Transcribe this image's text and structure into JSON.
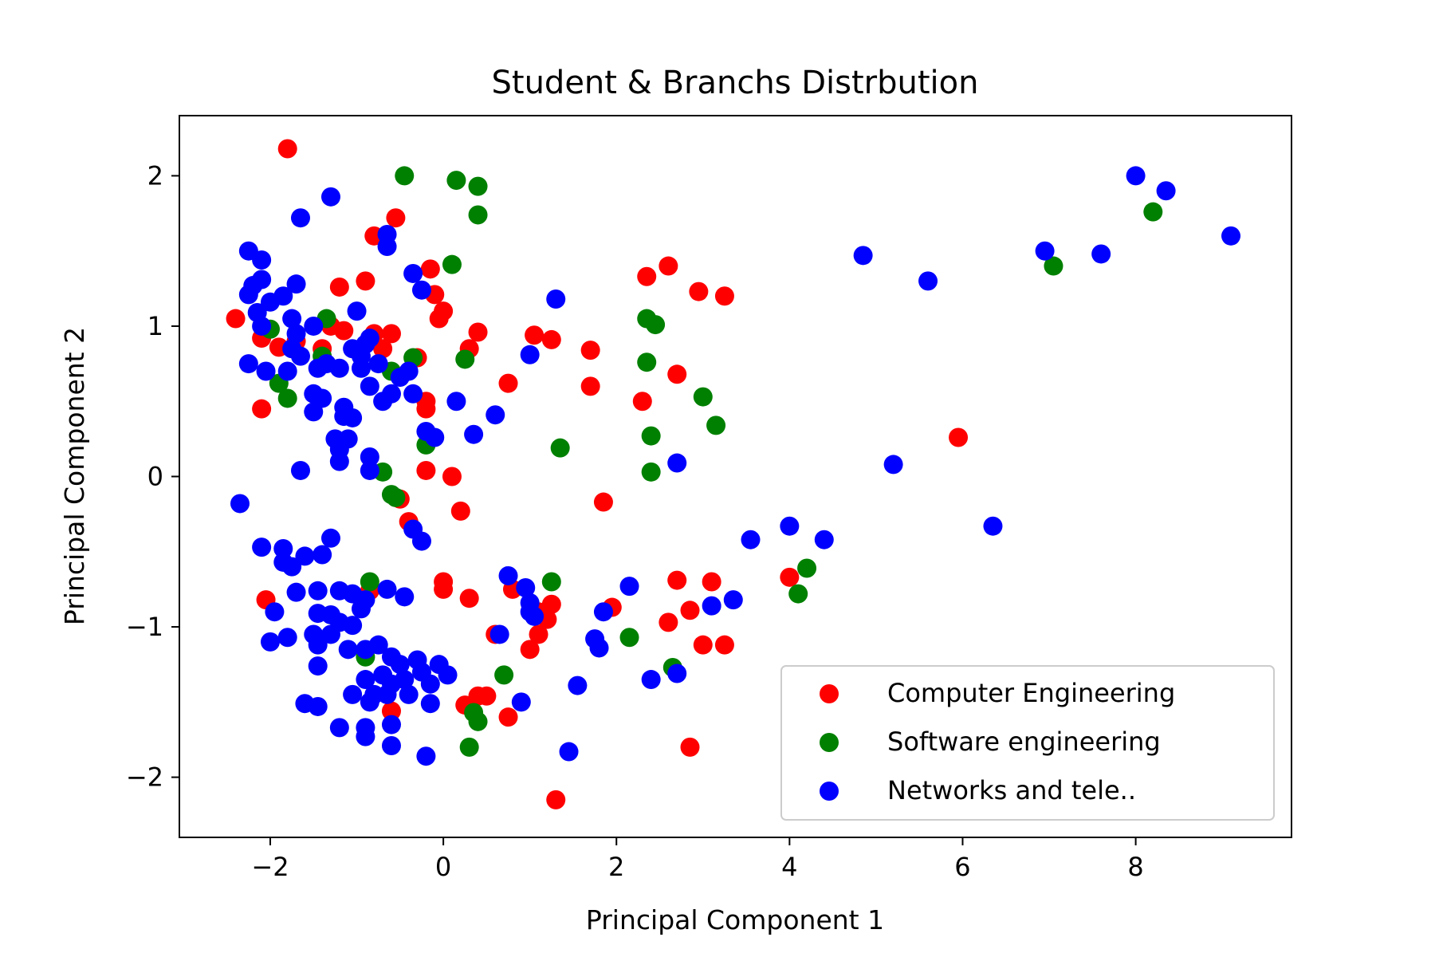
{
  "chart_data": {
    "type": "scatter",
    "title": "Student & Branchs Distrbution",
    "xlabel": "Principal Component 1",
    "ylabel": "Principal Component 2",
    "xlim": [
      -3.05,
      9.8
    ],
    "ylim": [
      -2.4,
      2.4
    ],
    "xticks": [
      -2,
      0,
      2,
      4,
      6,
      8
    ],
    "yticks": [
      -2,
      -1,
      0,
      1,
      2
    ],
    "xtick_labels": [
      "−2",
      "0",
      "2",
      "4",
      "6",
      "8"
    ],
    "ytick_labels": [
      "−2",
      "−1",
      "0",
      "1",
      "2"
    ],
    "grid": false,
    "legend_position": "bottom-right",
    "series": [
      {
        "name": "Computer Engineering",
        "color": "#ff0000",
        "points": [
          [
            -1.8,
            2.18
          ],
          [
            -2.4,
            1.05
          ],
          [
            -2.1,
            0.92
          ],
          [
            -1.9,
            0.86
          ],
          [
            -1.4,
            0.85
          ],
          [
            -1.2,
            1.26
          ],
          [
            -1.15,
            0.97
          ],
          [
            -0.9,
            1.3
          ],
          [
            -0.8,
            1.6
          ],
          [
            -0.55,
            1.72
          ],
          [
            -0.8,
            0.95
          ],
          [
            -0.6,
            0.95
          ],
          [
            -0.7,
            0.85
          ],
          [
            -0.3,
            0.79
          ],
          [
            -0.15,
            1.38
          ],
          [
            -0.1,
            1.21
          ],
          [
            -0.05,
            1.05
          ],
          [
            0.0,
            1.1
          ],
          [
            -0.2,
            0.5
          ],
          [
            -0.2,
            0.45
          ],
          [
            0.3,
            0.85
          ],
          [
            0.4,
            0.96
          ],
          [
            0.75,
            0.62
          ],
          [
            1.05,
            0.94
          ],
          [
            1.25,
            0.91
          ],
          [
            1.7,
            0.84
          ],
          [
            1.7,
            0.6
          ],
          [
            2.35,
            1.33
          ],
          [
            2.6,
            1.4
          ],
          [
            2.95,
            1.23
          ],
          [
            3.25,
            1.2
          ],
          [
            2.7,
            0.68
          ],
          [
            2.3,
            0.5
          ],
          [
            -2.1,
            0.45
          ],
          [
            -0.5,
            -0.15
          ],
          [
            -0.4,
            -0.3
          ],
          [
            -0.2,
            0.04
          ],
          [
            0.1,
            0.0
          ],
          [
            0.2,
            -0.23
          ],
          [
            1.85,
            -0.17
          ],
          [
            5.95,
            0.26
          ],
          [
            -2.05,
            -0.82
          ],
          [
            -0.85,
            -0.76
          ],
          [
            -0.6,
            -1.56
          ],
          [
            0.0,
            -0.7
          ],
          [
            0.0,
            -0.75
          ],
          [
            0.3,
            -0.81
          ],
          [
            0.6,
            -1.05
          ],
          [
            0.8,
            -0.75
          ],
          [
            1.1,
            -0.9
          ],
          [
            1.2,
            -0.95
          ],
          [
            1.25,
            -0.85
          ],
          [
            1.1,
            -1.05
          ],
          [
            1.0,
            -1.15
          ],
          [
            1.95,
            -0.87
          ],
          [
            2.6,
            -0.97
          ],
          [
            2.7,
            -0.69
          ],
          [
            2.85,
            -0.89
          ],
          [
            3.0,
            -1.12
          ],
          [
            3.1,
            -0.7
          ],
          [
            3.25,
            -1.12
          ],
          [
            4.0,
            -0.67
          ],
          [
            0.25,
            -1.52
          ],
          [
            0.4,
            -1.46
          ],
          [
            0.5,
            -1.46
          ],
          [
            0.75,
            -1.6
          ],
          [
            2.85,
            -1.8
          ],
          [
            1.3,
            -2.15
          ],
          [
            -1.7,
            0.9
          ],
          [
            -1.3,
            1.0
          ]
        ]
      },
      {
        "name": "Software engineering",
        "color": "#008000",
        "points": [
          [
            -0.45,
            2.0
          ],
          [
            0.15,
            1.97
          ],
          [
            0.4,
            1.93
          ],
          [
            0.4,
            1.74
          ],
          [
            0.1,
            1.41
          ],
          [
            -1.35,
            1.05
          ],
          [
            -1.4,
            0.8
          ],
          [
            -2.0,
            0.98
          ],
          [
            -1.9,
            0.62
          ],
          [
            -1.8,
            0.52
          ],
          [
            -0.6,
            0.7
          ],
          [
            -0.35,
            0.79
          ],
          [
            0.25,
            0.78
          ],
          [
            2.35,
            1.05
          ],
          [
            2.45,
            1.01
          ],
          [
            2.35,
            0.76
          ],
          [
            3.0,
            0.53
          ],
          [
            3.15,
            0.34
          ],
          [
            2.4,
            0.27
          ],
          [
            2.4,
            0.03
          ],
          [
            1.35,
            0.19
          ],
          [
            -0.2,
            0.21
          ],
          [
            -0.7,
            0.03
          ],
          [
            -0.6,
            -0.12
          ],
          [
            -0.55,
            -0.14
          ],
          [
            -0.85,
            -0.7
          ],
          [
            1.25,
            -0.7
          ],
          [
            4.2,
            -0.61
          ],
          [
            4.1,
            -0.78
          ],
          [
            2.15,
            -1.07
          ],
          [
            2.65,
            -1.27
          ],
          [
            0.7,
            -1.32
          ],
          [
            -0.9,
            -1.2
          ],
          [
            0.35,
            -1.57
          ],
          [
            0.4,
            -1.63
          ],
          [
            0.3,
            -1.8
          ],
          [
            8.2,
            1.76
          ],
          [
            7.05,
            1.4
          ]
        ]
      },
      {
        "name": "Networks and tele..",
        "color": "#0000ff",
        "points": [
          [
            -2.25,
            1.5
          ],
          [
            -2.1,
            1.44
          ],
          [
            -2.2,
            1.27
          ],
          [
            -2.1,
            1.31
          ],
          [
            -2.25,
            1.21
          ],
          [
            -2.0,
            1.16
          ],
          [
            -1.85,
            1.2
          ],
          [
            -1.7,
            1.28
          ],
          [
            -1.65,
            1.72
          ],
          [
            -1.3,
            1.86
          ],
          [
            -0.65,
            1.61
          ],
          [
            -0.65,
            1.53
          ],
          [
            -0.35,
            1.35
          ],
          [
            -0.25,
            1.24
          ],
          [
            1.3,
            1.18
          ],
          [
            -2.15,
            1.09
          ],
          [
            -2.1,
            1.0
          ],
          [
            -1.75,
            1.05
          ],
          [
            -1.7,
            0.95
          ],
          [
            -1.75,
            0.85
          ],
          [
            -1.65,
            0.8
          ],
          [
            -1.5,
            1.0
          ],
          [
            -1.35,
            0.75
          ],
          [
            -1.45,
            0.72
          ],
          [
            -1.2,
            0.72
          ],
          [
            -1.0,
            1.1
          ],
          [
            -1.05,
            0.85
          ],
          [
            -0.95,
            0.8
          ],
          [
            -0.9,
            0.88
          ],
          [
            -0.85,
            0.92
          ],
          [
            -0.95,
            0.72
          ],
          [
            -0.75,
            0.75
          ],
          [
            -0.85,
            0.6
          ],
          [
            -0.7,
            0.5
          ],
          [
            -0.6,
            0.55
          ],
          [
            -0.5,
            0.66
          ],
          [
            -0.4,
            0.7
          ],
          [
            -0.35,
            0.55
          ],
          [
            -2.25,
            0.75
          ],
          [
            -2.05,
            0.7
          ],
          [
            -1.8,
            0.7
          ],
          [
            -1.5,
            0.55
          ],
          [
            -1.4,
            0.52
          ],
          [
            -1.5,
            0.43
          ],
          [
            -1.15,
            0.46
          ],
          [
            -1.15,
            0.4
          ],
          [
            -1.05,
            0.39
          ],
          [
            -1.25,
            0.25
          ],
          [
            -1.1,
            0.25
          ],
          [
            -1.2,
            0.18
          ],
          [
            -1.2,
            0.1
          ],
          [
            -0.85,
            0.13
          ],
          [
            -0.85,
            0.04
          ],
          [
            -1.65,
            0.04
          ],
          [
            -2.35,
            -0.18
          ],
          [
            -0.2,
            0.3
          ],
          [
            -0.1,
            0.26
          ],
          [
            0.15,
            0.5
          ],
          [
            0.35,
            0.28
          ],
          [
            0.6,
            0.41
          ],
          [
            1.0,
            0.81
          ],
          [
            2.7,
            0.09
          ],
          [
            5.2,
            0.08
          ],
          [
            4.85,
            1.47
          ],
          [
            5.6,
            1.3
          ],
          [
            6.95,
            1.5
          ],
          [
            7.6,
            1.48
          ],
          [
            8.0,
            2.0
          ],
          [
            8.35,
            1.9
          ],
          [
            9.1,
            1.6
          ],
          [
            6.35,
            -0.33
          ],
          [
            4.0,
            -0.33
          ],
          [
            4.4,
            -0.42
          ],
          [
            3.55,
            -0.42
          ],
          [
            -2.1,
            -0.47
          ],
          [
            -1.85,
            -0.48
          ],
          [
            -1.85,
            -0.57
          ],
          [
            -1.75,
            -0.6
          ],
          [
            -1.6,
            -0.53
          ],
          [
            -1.4,
            -0.52
          ],
          [
            -1.3,
            -0.41
          ],
          [
            -0.35,
            -0.35
          ],
          [
            -0.25,
            -0.43
          ],
          [
            -1.7,
            -0.77
          ],
          [
            -1.45,
            -0.76
          ],
          [
            -1.2,
            -0.76
          ],
          [
            -1.05,
            -0.78
          ],
          [
            -0.9,
            -0.82
          ],
          [
            -0.65,
            -0.75
          ],
          [
            -0.45,
            -0.8
          ],
          [
            -1.45,
            -0.91
          ],
          [
            -1.3,
            -0.92
          ],
          [
            -1.2,
            -0.97
          ],
          [
            -1.05,
            -0.99
          ],
          [
            -0.95,
            -0.88
          ],
          [
            -1.95,
            -0.9
          ],
          [
            -1.5,
            -1.05
          ],
          [
            -1.45,
            -1.12
          ],
          [
            -1.3,
            -1.05
          ],
          [
            -1.8,
            -1.07
          ],
          [
            -2.0,
            -1.1
          ],
          [
            -1.45,
            -1.26
          ],
          [
            -1.1,
            -1.15
          ],
          [
            -0.9,
            -1.15
          ],
          [
            -0.75,
            -1.12
          ],
          [
            -0.6,
            -1.2
          ],
          [
            -0.5,
            -1.25
          ],
          [
            -0.3,
            -1.22
          ],
          [
            -0.05,
            -1.25
          ],
          [
            0.05,
            -1.32
          ],
          [
            -0.9,
            -1.35
          ],
          [
            -0.7,
            -1.32
          ],
          [
            -0.6,
            -1.38
          ],
          [
            -0.45,
            -1.35
          ],
          [
            -0.25,
            -1.3
          ],
          [
            -0.15,
            -1.38
          ],
          [
            -1.05,
            -1.45
          ],
          [
            -0.8,
            -1.45
          ],
          [
            -0.65,
            -1.45
          ],
          [
            -0.4,
            -1.45
          ],
          [
            -0.15,
            -1.51
          ],
          [
            -0.85,
            -1.5
          ],
          [
            -1.6,
            -1.51
          ],
          [
            -1.45,
            -1.53
          ],
          [
            -1.2,
            -1.67
          ],
          [
            -0.9,
            -1.67
          ],
          [
            -0.9,
            -1.73
          ],
          [
            -0.6,
            -1.65
          ],
          [
            -0.6,
            -1.79
          ],
          [
            -0.2,
            -1.86
          ],
          [
            0.75,
            -0.66
          ],
          [
            0.95,
            -0.74
          ],
          [
            1.0,
            -0.84
          ],
          [
            1.0,
            -0.9
          ],
          [
            1.05,
            -0.93
          ],
          [
            0.65,
            -1.05
          ],
          [
            1.85,
            -0.9
          ],
          [
            1.75,
            -1.08
          ],
          [
            1.8,
            -1.14
          ],
          [
            2.15,
            -0.73
          ],
          [
            3.1,
            -0.86
          ],
          [
            3.35,
            -0.82
          ],
          [
            2.4,
            -1.35
          ],
          [
            2.7,
            -1.31
          ],
          [
            1.55,
            -1.39
          ],
          [
            0.9,
            -1.5
          ],
          [
            1.45,
            -1.83
          ]
        ]
      }
    ]
  }
}
